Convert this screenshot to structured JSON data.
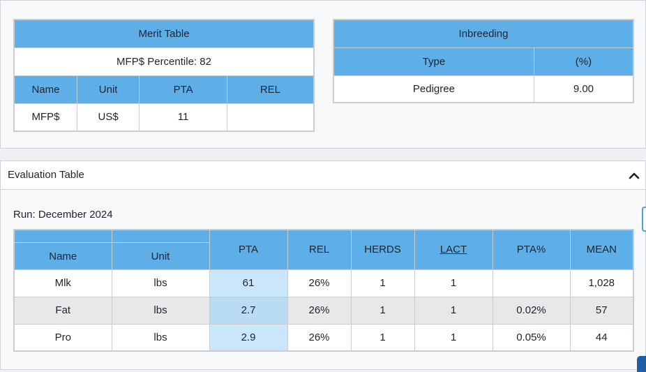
{
  "merit": {
    "title": "Merit Table",
    "percentile": "MFP$ Percentile: 82",
    "columns": [
      "Name",
      "Unit",
      "PTA",
      "REL"
    ],
    "rows": [
      [
        "MFP$",
        "US$",
        "11",
        ""
      ]
    ]
  },
  "inbreeding": {
    "title": "Inbreeding",
    "columns": [
      "Type",
      "(%)"
    ],
    "rows": [
      [
        "Pedigree",
        "9.00"
      ]
    ]
  },
  "evaluation": {
    "section_title": "Evaluation Table",
    "collapse_icon": "chevron-up-icon",
    "run": "Run: December 2024",
    "columns": [
      "Name",
      "Unit",
      "PTA",
      "REL",
      "HERDS",
      "LACT",
      "PTA%",
      "MEAN"
    ],
    "rows": [
      [
        "Mlk",
        "lbs",
        "61",
        "26%",
        "1",
        "1",
        "",
        "1,028"
      ],
      [
        "Fat",
        "lbs",
        "2.7",
        "26%",
        "1",
        "1",
        "0.02%",
        "57"
      ],
      [
        "Pro",
        "lbs",
        "2.9",
        "26%",
        "1",
        "1",
        "0.05%",
        "44"
      ]
    ]
  },
  "colors": {
    "header_blue": "#5eaee8",
    "pta_highlight": "#c9e6fb",
    "stripe": "#e7e8ea",
    "border": "#c9cdd2"
  }
}
